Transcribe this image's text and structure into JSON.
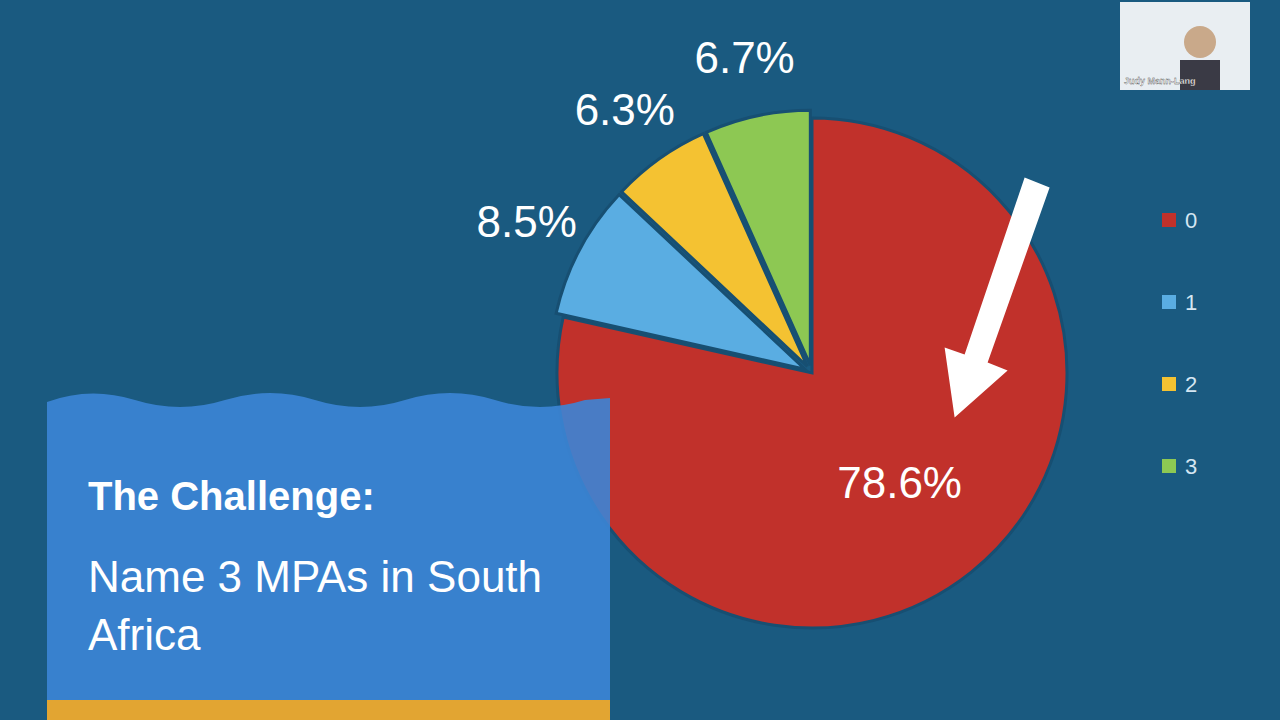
{
  "chart_data": {
    "type": "pie",
    "title": "The Challenge:",
    "subtitle": "Name 3 MPAs in South Africa",
    "categories": [
      "0",
      "1",
      "2",
      "3"
    ],
    "values": [
      78.6,
      8.5,
      6.3,
      6.7
    ],
    "value_labels": [
      "78.6%",
      "8.5%",
      "6.3%",
      "6.7%"
    ],
    "colors": [
      "#c1312b",
      "#5aade2",
      "#f4c232",
      "#8dc853"
    ],
    "data_labels": true,
    "legend": "right",
    "annotations": [
      "Judy Mann-Lang"
    ]
  }
}
